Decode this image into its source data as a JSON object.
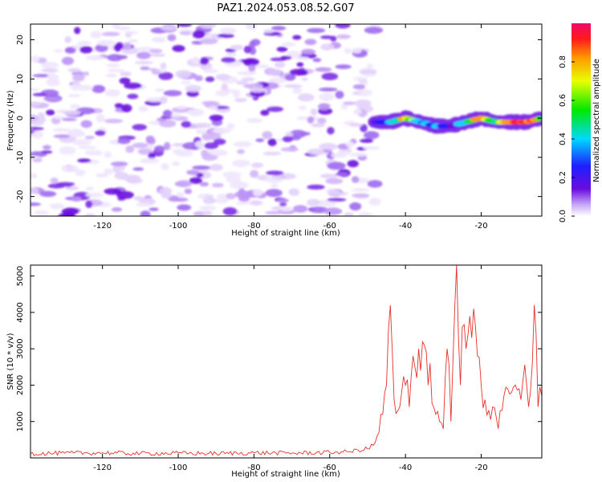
{
  "title": "PAZ1.2024.053.08.52.G07",
  "chart_data": [
    {
      "type": "heatmap",
      "title": "PAZ1.2024.053.08.52.G07",
      "xlabel": "Height of straight line (km)",
      "ylabel": "Frequency (Hz)",
      "xlim": [
        -139,
        -4
      ],
      "ylim": [
        -25,
        24
      ],
      "x_ticks": [
        -120,
        -100,
        -80,
        -60,
        -40,
        -20
      ],
      "y_ticks": [
        -20,
        -10,
        0,
        10,
        20
      ],
      "colorbar": {
        "label": "Normalized spectral amplitude",
        "range": [
          0,
          1
        ],
        "ticks": [
          0.0,
          0.2,
          0.4,
          0.6,
          0.8
        ]
      },
      "grid": false,
      "description_of_data": {
        "noise_region_x": [
          -139,
          -48
        ],
        "signal_trace": {
          "x": [
            -48,
            -44,
            -40,
            -36,
            -32,
            -28,
            -24,
            -20,
            -16,
            -12,
            -8,
            -4
          ],
          "frequency_hz": [
            -1,
            -1,
            0,
            -1,
            -2,
            -2,
            -1,
            0,
            -1,
            -1,
            -1,
            0
          ],
          "amplitude": [
            0.3,
            0.45,
            0.75,
            0.5,
            0.45,
            0.3,
            0.55,
            0.8,
            0.6,
            0.85,
            0.95,
            0.6
          ]
        }
      }
    },
    {
      "type": "line",
      "title": "",
      "xlabel": "Height of straight line (km)",
      "ylabel": "SNR (10 * v/v)",
      "xlim": [
        -139,
        -4
      ],
      "ylim": [
        0,
        5300
      ],
      "x_ticks": [
        -120,
        -100,
        -80,
        -60,
        -40,
        -20
      ],
      "y_ticks": [
        1000,
        2000,
        3000,
        4000,
        5000
      ],
      "grid": false,
      "color": "#e8302a",
      "series": [
        {
          "x": [
            -139,
            -130,
            -120,
            -110,
            -100,
            -90,
            -80,
            -70,
            -60,
            -55,
            -50,
            -48,
            -47,
            -46,
            -45,
            -44.5,
            -44,
            -43.5,
            -43,
            -42,
            -41,
            -40,
            -39,
            -38,
            -37,
            -36.5,
            -36,
            -35,
            -34,
            -33.5,
            -33,
            -32,
            -31,
            -30,
            -29.5,
            -29,
            -28,
            -27.5,
            -27,
            -26.5,
            -26,
            -25.5,
            -25,
            -24,
            -23,
            -22.5,
            -22,
            -21.5,
            -21,
            -20,
            -19,
            -18,
            -17,
            -16,
            -15,
            -14,
            -13,
            -12,
            -11,
            -10,
            -9,
            -8,
            -7,
            -6.5,
            -6,
            -5.5,
            -5,
            -4
          ],
          "y": [
            120,
            130,
            140,
            120,
            130,
            120,
            140,
            130,
            150,
            170,
            250,
            420,
            700,
            1200,
            2000,
            3500,
            4200,
            3000,
            1600,
            1300,
            1800,
            2000,
            1400,
            2800,
            2200,
            3000,
            2400,
            3100,
            2000,
            2600,
            1500,
            1200,
            1000,
            800,
            2200,
            3000,
            1000,
            2500,
            4100,
            5300,
            3300,
            2000,
            3600,
            3000,
            3900,
            3300,
            4100,
            3600,
            2800,
            2000,
            1600,
            1300,
            1400,
            1100,
            1300,
            1700,
            1900,
            1800,
            2000,
            1900,
            2100,
            2000,
            1800,
            2600,
            4200,
            3400,
            1400,
            1700
          ]
        }
      ]
    }
  ]
}
